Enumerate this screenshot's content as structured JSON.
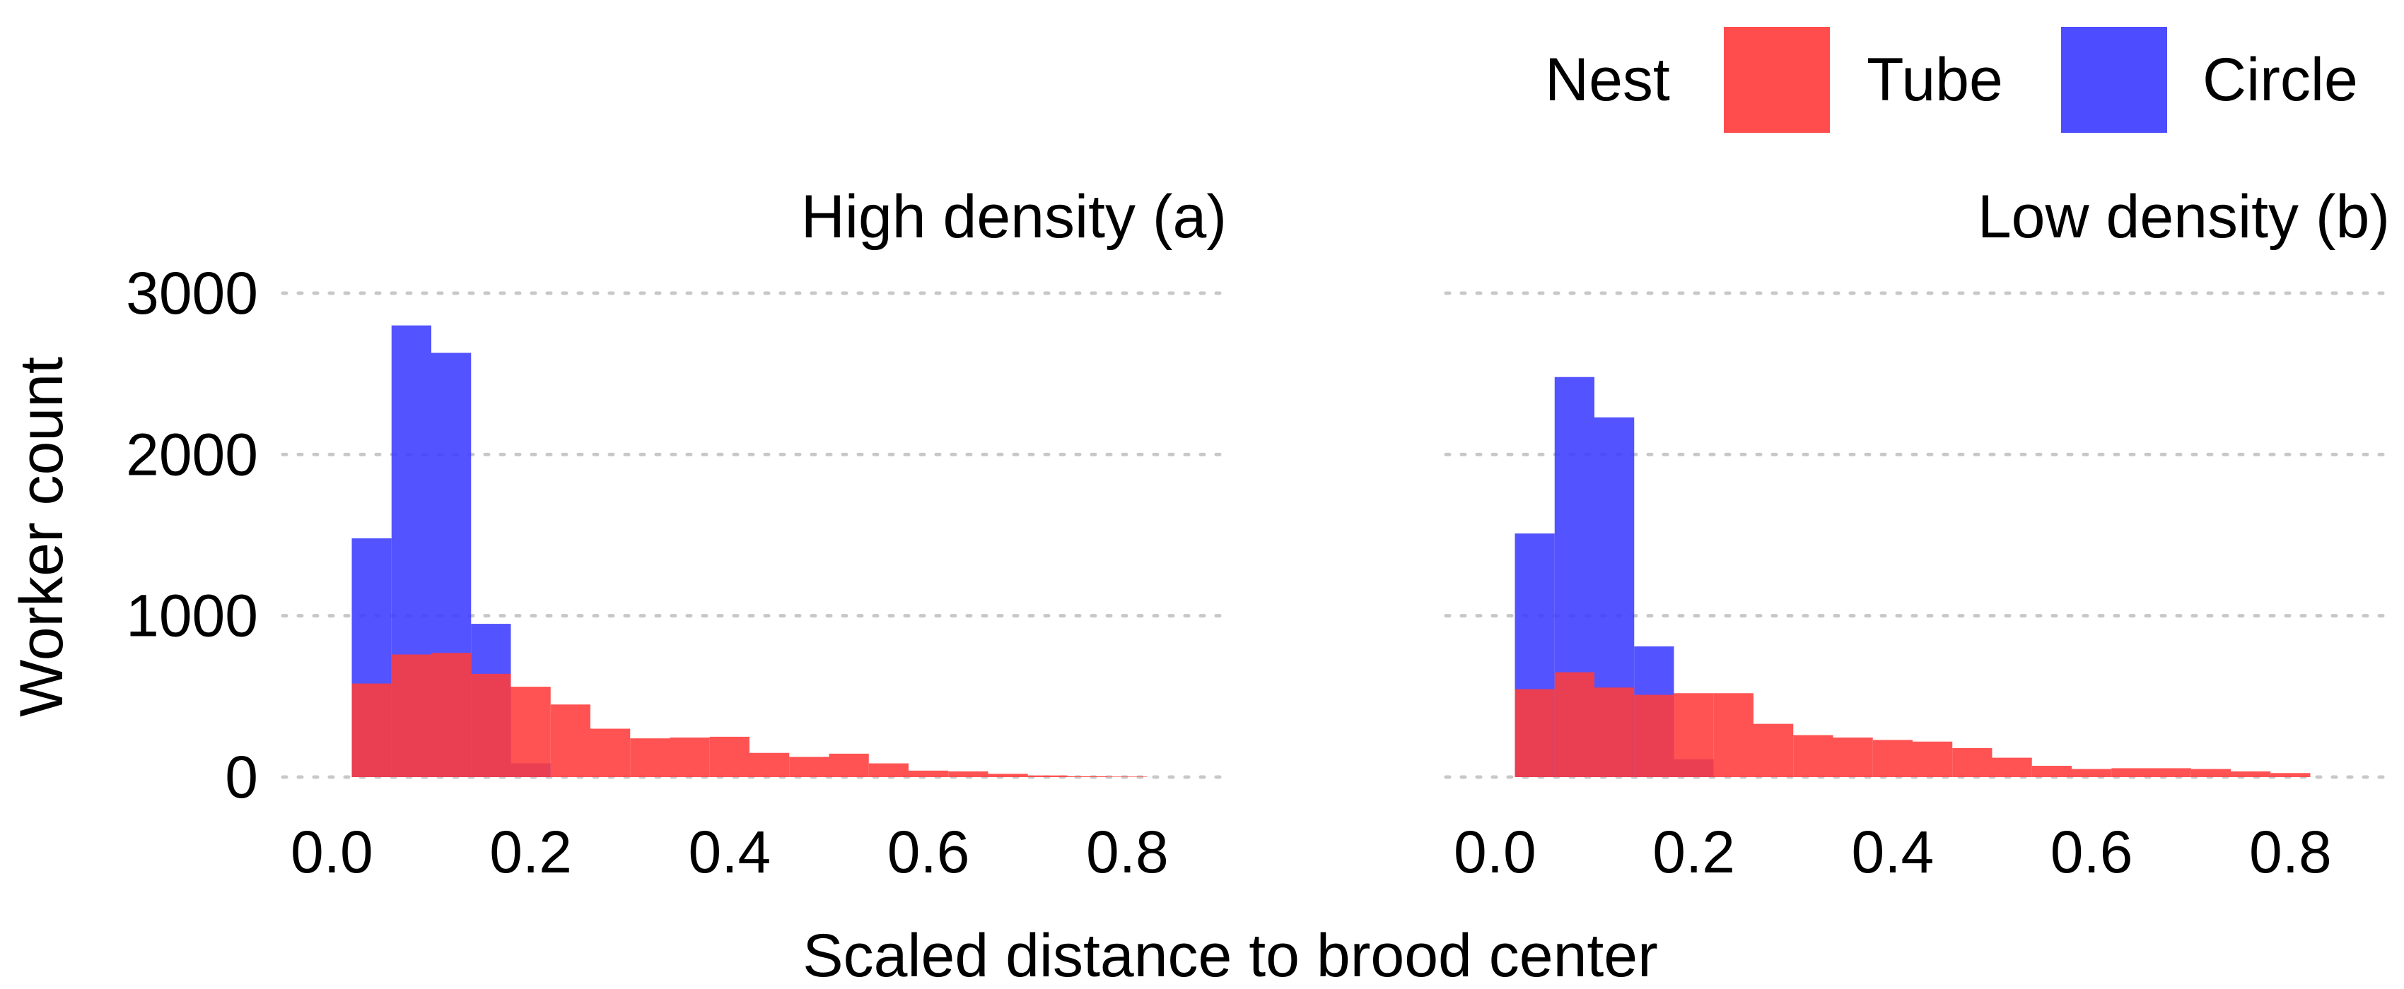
{
  "chart_data": {
    "type": "bar",
    "stacking": "overlay",
    "xlabel": "Scaled distance to brood center",
    "ylabel": "Worker count",
    "xlim": [
      -0.06,
      0.9
    ],
    "ylim": [
      0,
      3000
    ],
    "x_ticks": [
      "0.0",
      "0.2",
      "0.4",
      "0.6",
      "0.8"
    ],
    "y_ticks": [
      "0",
      "1000",
      "2000",
      "3000"
    ],
    "bin_width": 0.04,
    "grid": "horizontal dotted",
    "legend": {
      "title": "Nest",
      "position": "top-right",
      "entries": [
        {
          "label": "Tube",
          "color": "#ff3b3b"
        },
        {
          "label": "Circle",
          "color": "#3b3bff"
        }
      ]
    },
    "panels": [
      {
        "title": "High density (a)",
        "series": [
          {
            "name": "Circle",
            "color": "#3b3bff",
            "x": [
              0.04,
              0.08,
              0.12,
              0.16,
              0.2
            ],
            "values": [
              1480,
              2800,
              2630,
              950,
              85
            ]
          },
          {
            "name": "Tube",
            "color": "#ff3b3b",
            "x": [
              0.04,
              0.08,
              0.12,
              0.16,
              0.2,
              0.24,
              0.28,
              0.32,
              0.36,
              0.4,
              0.44,
              0.48,
              0.52,
              0.56,
              0.6,
              0.64,
              0.68,
              0.72,
              0.76,
              0.8
            ],
            "values": [
              580,
              760,
              770,
              640,
              560,
              450,
              300,
              240,
              245,
              250,
              150,
              125,
              145,
              85,
              40,
              35,
              20,
              10,
              5,
              3
            ]
          }
        ]
      },
      {
        "title": "Low density (b)",
        "series": [
          {
            "name": "Circle",
            "color": "#3b3bff",
            "x": [
              0.04,
              0.08,
              0.12,
              0.16,
              0.2
            ],
            "values": [
              1510,
              2480,
              2230,
              810,
              110
            ]
          },
          {
            "name": "Tube",
            "color": "#ff3b3b",
            "x": [
              0.04,
              0.08,
              0.12,
              0.16,
              0.2,
              0.24,
              0.28,
              0.32,
              0.36,
              0.4,
              0.44,
              0.48,
              0.52,
              0.56,
              0.6,
              0.64,
              0.68,
              0.72,
              0.76,
              0.8
            ],
            "values": [
              545,
              650,
              555,
              510,
              520,
              520,
              330,
              260,
              245,
              230,
              220,
              180,
              120,
              70,
              50,
              55,
              55,
              50,
              35,
              25
            ]
          }
        ]
      }
    ]
  }
}
